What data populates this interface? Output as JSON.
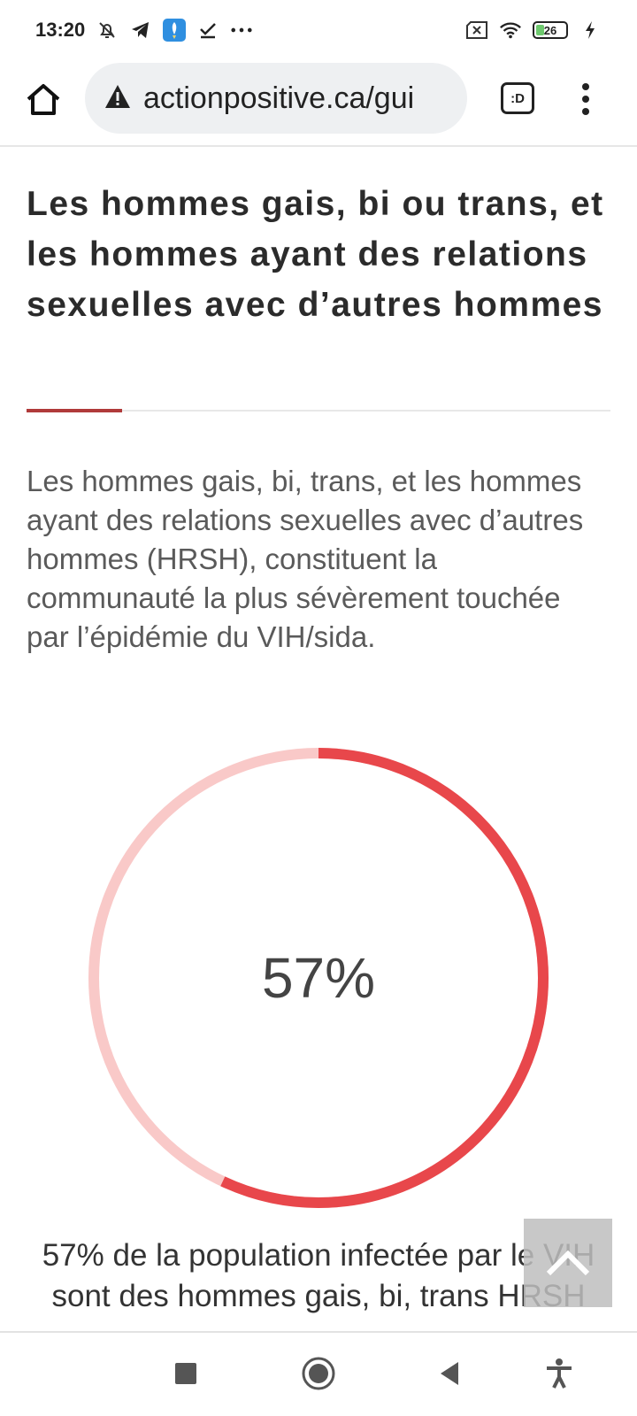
{
  "status_bar": {
    "time": "13:20",
    "left_icons": [
      "bell-off-icon",
      "telegram-icon",
      "rocket-app-icon",
      "checkmark-icon",
      "more-dots-icon"
    ],
    "right_icons": [
      "sim-x-icon",
      "wifi-icon",
      "battery-icon",
      "charging-icon"
    ],
    "battery_level": "26"
  },
  "browser": {
    "url": "actionpositive.ca/gui",
    "tab_label": ":D",
    "icons": [
      "home-icon",
      "warning-icon",
      "tab-switcher-icon",
      "overflow-menu-icon"
    ]
  },
  "article": {
    "title": "Les hommes gais, bi ou trans, et les hommes ayant des relations sexuelles avec d’autres hommes",
    "intro": "Les hommes gais, bi, trans, et les hommes ayant des relations sexuelles avec d’autres hommes (HRSH), constituent la communauté la plus sévèrement touchée par l’épidémie du VIH/sida.",
    "stat_value": "57%",
    "stat_fraction": 0.57,
    "caption": "57% de la population infectée par le VIH sont des hommes gais, bi, trans HRSH"
  },
  "colors": {
    "accent": "#b03a3a",
    "ring_filled": "#e8474b",
    "ring_track": "#f9c9c8"
  },
  "nav_bar": {
    "icons": [
      "recents-square-icon",
      "home-circle-icon",
      "back-triangle-icon",
      "accessibility-icon"
    ]
  }
}
